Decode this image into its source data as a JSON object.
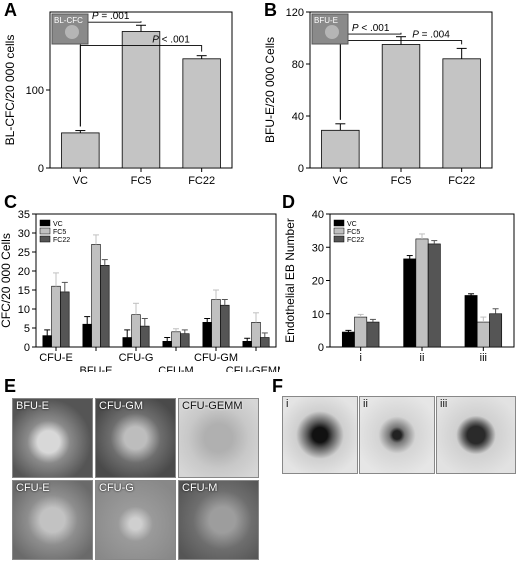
{
  "panels": {
    "A": {
      "label": "A",
      "inset_label": "BL-CFC",
      "ylabel": "BL-CFC/20 000 cells",
      "ylim": [
        0,
        200
      ],
      "yticks": [
        0,
        100
      ],
      "categories": [
        "VC",
        "FC5",
        "FC22"
      ],
      "values": [
        45,
        175,
        140
      ],
      "errors": [
        3,
        8,
        4
      ],
      "brackets": [
        {
          "from": 0,
          "to": 1,
          "level": 187,
          "label": "P = .001"
        },
        {
          "from": 0,
          "to": 2,
          "level": 157,
          "label": "P < .001"
        }
      ]
    },
    "B": {
      "label": "B",
      "inset_label": "BFU-E",
      "ylabel": "BFU-E/20 000 Cells",
      "ylim": [
        0,
        120
      ],
      "yticks": [
        0,
        40,
        80,
        120
      ],
      "categories": [
        "VC",
        "FC5",
        "FC22"
      ],
      "values": [
        29,
        95,
        84
      ],
      "errors": [
        5,
        6,
        8
      ],
      "brackets": [
        {
          "from": 0,
          "to": 1,
          "level": 103,
          "label": "P < .001"
        },
        {
          "from": 0,
          "to": 2,
          "level": 98,
          "label": "P = .004"
        }
      ]
    },
    "C": {
      "label": "C",
      "ylabel": "CFC/20 000 Cells",
      "ylim": [
        0,
        35
      ],
      "yticks": [
        0,
        5,
        10,
        15,
        20,
        25,
        30,
        35
      ],
      "categories": [
        "CFU-E",
        "BFU-E",
        "CFU-G",
        "CFU-M",
        "CFU-GM",
        "CFU-GEMM"
      ],
      "legend": [
        "VC",
        "FC5",
        "FC22"
      ],
      "colors": [
        "#000000",
        "#c0c0c0",
        "#555555"
      ],
      "series": [
        {
          "values": [
            3,
            6,
            2.5,
            1.5,
            6.5,
            1.5
          ],
          "errors": [
            1.5,
            2,
            2,
            1,
            1,
            0.8
          ]
        },
        {
          "values": [
            16,
            27,
            8.5,
            4,
            12.5,
            6.5
          ],
          "errors": [
            3.5,
            2.5,
            3,
            0.8,
            2.5,
            2.5
          ]
        },
        {
          "values": [
            14.5,
            21.5,
            5.5,
            3.5,
            11,
            2.5
          ],
          "errors": [
            2.5,
            1.5,
            2,
            1,
            1.5,
            1.2
          ]
        }
      ]
    },
    "D": {
      "label": "D",
      "ylabel": "Endothelial EB Number",
      "ylim": [
        0,
        40
      ],
      "yticks": [
        0,
        10,
        20,
        30,
        40
      ],
      "categories": [
        "i",
        "ii",
        "iii"
      ],
      "legend": [
        "VC",
        "FC5",
        "FC22"
      ],
      "colors": [
        "#000000",
        "#c0c0c0",
        "#555555"
      ],
      "series": [
        {
          "values": [
            4.5,
            26.5,
            15.5
          ],
          "errors": [
            0.5,
            1,
            0.5
          ]
        },
        {
          "values": [
            9,
            32.5,
            7.5
          ],
          "errors": [
            0.8,
            1.5,
            1.5
          ]
        },
        {
          "values": [
            7.5,
            31,
            10
          ],
          "errors": [
            0.8,
            1,
            1.5
          ]
        }
      ]
    }
  },
  "micrographs_E": {
    "label": "E",
    "tiles": [
      "BFU-E",
      "CFU-GM",
      "CFU-GEMM",
      "CFU-E",
      "CFU-G",
      "CFU-M"
    ]
  },
  "micrographs_F": {
    "label": "F",
    "tiles": [
      "i",
      "ii",
      "iii"
    ]
  }
}
